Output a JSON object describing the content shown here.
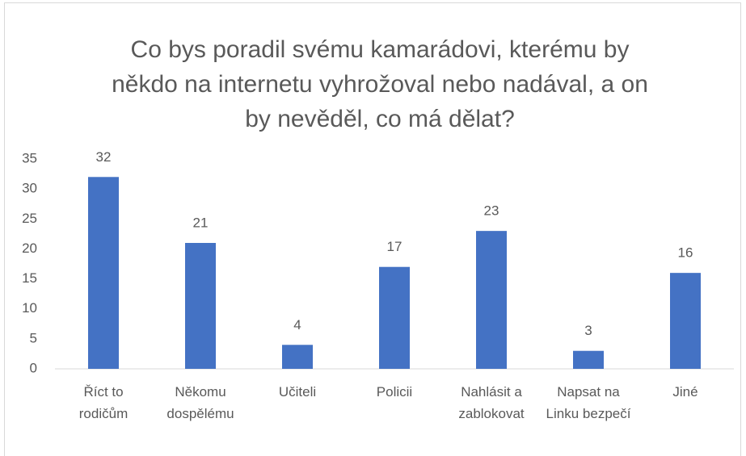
{
  "chart_data": {
    "type": "bar",
    "title": "Co bys poradil svému kamarádovi, kterému by někdo na internetu vyhrožoval nebo nadával, a on by nevěděl, co má dělat?",
    "categories": [
      "Říct to rodičům",
      "Někomu dospělému",
      "Učiteli",
      "Policii",
      "Nahlásit a zablokovat",
      "Napsat na Linku bezpečí",
      "Jiné"
    ],
    "values": [
      32,
      21,
      4,
      17,
      23,
      3,
      16
    ],
    "color": "#4472c4",
    "ylim": [
      0,
      35
    ],
    "yticks": [
      0,
      5,
      10,
      15,
      20,
      25,
      30,
      35
    ],
    "grid": false
  }
}
